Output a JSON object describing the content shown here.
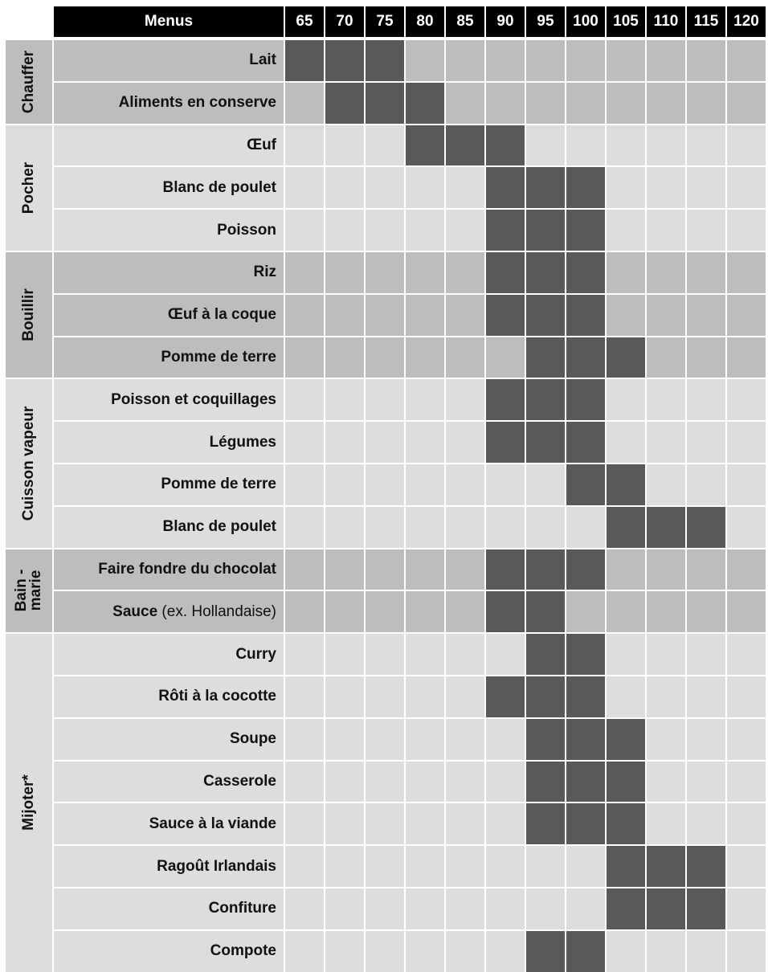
{
  "header": {
    "menus_label": "Menus",
    "temperatures": [
      "65",
      "70",
      "75",
      "80",
      "85",
      "90",
      "95",
      "100",
      "105",
      "110",
      "115",
      "120"
    ]
  },
  "colors": {
    "header_bg": "#000000",
    "header_text": "#ffffff",
    "active": "#5a5959",
    "light": "#dcdddd",
    "dark": "#bcbdbd",
    "grid_line": "#ffffff"
  },
  "categories": [
    {
      "label": "Chauffer",
      "shade": "dark",
      "items": [
        {
          "name": "Lait",
          "active": [
            "65",
            "70",
            "75"
          ]
        },
        {
          "name": "Aliments en conserve",
          "active": [
            "70",
            "75",
            "80"
          ]
        }
      ]
    },
    {
      "label": "Pocher",
      "shade": "light",
      "items": [
        {
          "name": "Œuf",
          "active": [
            "80",
            "85",
            "90"
          ]
        },
        {
          "name": "Blanc de poulet",
          "active": [
            "90",
            "95",
            "100"
          ]
        },
        {
          "name": "Poisson",
          "active": [
            "90",
            "95",
            "100"
          ]
        }
      ]
    },
    {
      "label": "Bouillir",
      "shade": "dark",
      "items": [
        {
          "name": "Riz",
          "active": [
            "90",
            "95",
            "100"
          ]
        },
        {
          "name": "Œuf à la coque",
          "active": [
            "90",
            "95",
            "100"
          ]
        },
        {
          "name": "Pomme de terre",
          "active": [
            "95",
            "100",
            "105"
          ]
        }
      ]
    },
    {
      "label": "Cuisson vapeur",
      "shade": "light",
      "items": [
        {
          "name": "Poisson et coquillages",
          "active": [
            "90",
            "95",
            "100"
          ]
        },
        {
          "name": "Légumes",
          "active": [
            "90",
            "95",
            "100"
          ]
        },
        {
          "name": "Pomme de terre",
          "active": [
            "100",
            "105"
          ]
        },
        {
          "name": "Blanc de poulet",
          "active": [
            "105",
            "110",
            "115"
          ]
        }
      ]
    },
    {
      "label": "Bain - marie",
      "label_lines": [
        "Bain -",
        "marie"
      ],
      "shade": "dark",
      "items": [
        {
          "name": "Faire fondre du chocolat",
          "active": [
            "90",
            "95",
            "100"
          ]
        },
        {
          "name": "Sauce",
          "suffix": " (ex. Hollandaise)",
          "active": [
            "90",
            "95"
          ]
        }
      ]
    },
    {
      "label": "Mijoter*",
      "shade": "light",
      "items": [
        {
          "name": "Curry",
          "active": [
            "95",
            "100"
          ]
        },
        {
          "name": "Rôti à la cocotte",
          "active": [
            "90",
            "95",
            "100"
          ]
        },
        {
          "name": "Soupe",
          "active": [
            "95",
            "100",
            "105"
          ]
        },
        {
          "name": "Casserole",
          "active": [
            "95",
            "100",
            "105"
          ]
        },
        {
          "name": "Sauce à la viande",
          "active": [
            "95",
            "100",
            "105"
          ]
        },
        {
          "name": "Ragoût Irlandais",
          "active": [
            "105",
            "110",
            "115"
          ]
        },
        {
          "name": "Confiture",
          "active": [
            "105",
            "110",
            "115"
          ]
        },
        {
          "name": "Compote",
          "active": [
            "95",
            "100"
          ]
        }
      ]
    }
  ]
}
